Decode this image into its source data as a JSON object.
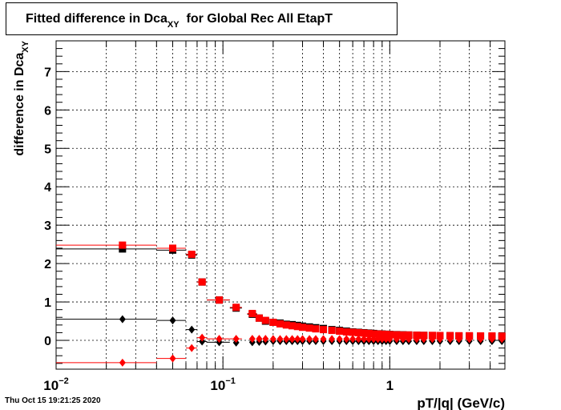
{
  "chart_data": {
    "type": "scatter",
    "title_main": "Fitted difference in Dca",
    "title_sub": "XY",
    "title_rest": "  for Global Rec All EtapT",
    "xlabel": "pT/|q| (GeV/c)",
    "ylabel_main": "difference in Dca",
    "ylabel_sub": "XY",
    "xscale": "log",
    "xlim": [
      0.01,
      4.9
    ],
    "ylim": [
      -0.75,
      7.8
    ],
    "grid": true,
    "x_ticks": [
      {
        "value": 0.01,
        "base": "10",
        "exp": "−2"
      },
      {
        "value": 0.1,
        "base": "10",
        "exp": "−1"
      },
      {
        "value": 1,
        "base": "1",
        "exp": ""
      }
    ],
    "y_ticks": [
      "0",
      "1",
      "2",
      "3",
      "4",
      "5",
      "6",
      "7"
    ],
    "series": [
      {
        "color": "#000000",
        "marker": "square",
        "points": [
          {
            "x": 0.025,
            "y": 2.38,
            "xlo": 0.01,
            "xhi": 0.04
          },
          {
            "x": 0.05,
            "y": 2.35,
            "xlo": 0.04,
            "xhi": 0.06
          },
          {
            "x": 0.065,
            "y": 2.22,
            "xlo": 0.06,
            "xhi": 0.07
          },
          {
            "x": 0.075,
            "y": 1.52,
            "xlo": 0.07,
            "xhi": 0.08
          },
          {
            "x": 0.095,
            "y": 1.05,
            "xlo": 0.08,
            "xhi": 0.11
          },
          {
            "x": 0.12,
            "y": 0.84,
            "xlo": 0.11,
            "xhi": 0.13
          },
          {
            "x": 0.15,
            "y": 0.68,
            "xlo": 0.14,
            "xhi": 0.16
          },
          {
            "x": 0.165,
            "y": 0.58
          },
          {
            "x": 0.18,
            "y": 0.5
          },
          {
            "x": 0.2,
            "y": 0.47
          },
          {
            "x": 0.22,
            "y": 0.45
          },
          {
            "x": 0.24,
            "y": 0.42
          },
          {
            "x": 0.26,
            "y": 0.41
          },
          {
            "x": 0.28,
            "y": 0.39
          },
          {
            "x": 0.3,
            "y": 0.37
          },
          {
            "x": 0.33,
            "y": 0.35
          },
          {
            "x": 0.36,
            "y": 0.33
          },
          {
            "x": 0.4,
            "y": 0.31
          },
          {
            "x": 0.45,
            "y": 0.28
          },
          {
            "x": 0.5,
            "y": 0.26
          },
          {
            "x": 0.55,
            "y": 0.24
          },
          {
            "x": 0.6,
            "y": 0.22
          },
          {
            "x": 0.65,
            "y": 0.21
          },
          {
            "x": 0.7,
            "y": 0.2
          },
          {
            "x": 0.75,
            "y": 0.19
          },
          {
            "x": 0.8,
            "y": 0.18
          },
          {
            "x": 0.85,
            "y": 0.17
          },
          {
            "x": 0.9,
            "y": 0.165
          },
          {
            "x": 0.95,
            "y": 0.16
          },
          {
            "x": 1.0,
            "y": 0.155
          },
          {
            "x": 1.1,
            "y": 0.15
          },
          {
            "x": 1.2,
            "y": 0.145
          },
          {
            "x": 1.3,
            "y": 0.14
          },
          {
            "x": 1.45,
            "y": 0.135
          },
          {
            "x": 1.6,
            "y": 0.13
          },
          {
            "x": 1.8,
            "y": 0.125
          },
          {
            "x": 2.0,
            "y": 0.12
          },
          {
            "x": 2.3,
            "y": 0.12
          },
          {
            "x": 2.6,
            "y": 0.115
          },
          {
            "x": 3.0,
            "y": 0.11
          },
          {
            "x": 3.5,
            "y": 0.11
          },
          {
            "x": 4.1,
            "y": 0.1
          },
          {
            "x": 4.7,
            "y": 0.1
          }
        ]
      },
      {
        "color": "#ff0000",
        "marker": "square",
        "points": [
          {
            "x": 0.025,
            "y": 2.48,
            "xlo": 0.01,
            "xhi": 0.04
          },
          {
            "x": 0.05,
            "y": 2.4,
            "xlo": 0.04,
            "xhi": 0.06
          },
          {
            "x": 0.065,
            "y": 2.24,
            "xlo": 0.06,
            "xhi": 0.07
          },
          {
            "x": 0.075,
            "y": 1.52,
            "xlo": 0.07,
            "xhi": 0.08
          },
          {
            "x": 0.095,
            "y": 1.05,
            "xlo": 0.08,
            "xhi": 0.11
          },
          {
            "x": 0.12,
            "y": 0.86,
            "xlo": 0.11,
            "xhi": 0.13
          },
          {
            "x": 0.15,
            "y": 0.7,
            "xlo": 0.14,
            "xhi": 0.16
          },
          {
            "x": 0.165,
            "y": 0.58
          },
          {
            "x": 0.18,
            "y": 0.52
          },
          {
            "x": 0.2,
            "y": 0.47
          },
          {
            "x": 0.22,
            "y": 0.43
          },
          {
            "x": 0.24,
            "y": 0.4
          },
          {
            "x": 0.26,
            "y": 0.38
          },
          {
            "x": 0.28,
            "y": 0.36
          },
          {
            "x": 0.3,
            "y": 0.34
          },
          {
            "x": 0.33,
            "y": 0.32
          },
          {
            "x": 0.36,
            "y": 0.3
          },
          {
            "x": 0.4,
            "y": 0.28
          },
          {
            "x": 0.45,
            "y": 0.26
          },
          {
            "x": 0.5,
            "y": 0.24
          },
          {
            "x": 0.55,
            "y": 0.22
          },
          {
            "x": 0.6,
            "y": 0.21
          },
          {
            "x": 0.65,
            "y": 0.2
          },
          {
            "x": 0.7,
            "y": 0.19
          },
          {
            "x": 0.75,
            "y": 0.18
          },
          {
            "x": 0.8,
            "y": 0.17
          },
          {
            "x": 0.85,
            "y": 0.165
          },
          {
            "x": 0.9,
            "y": 0.16
          },
          {
            "x": 0.95,
            "y": 0.155
          },
          {
            "x": 1.0,
            "y": 0.15
          },
          {
            "x": 1.1,
            "y": 0.145
          },
          {
            "x": 1.2,
            "y": 0.14
          },
          {
            "x": 1.3,
            "y": 0.14
          },
          {
            "x": 1.45,
            "y": 0.135
          },
          {
            "x": 1.6,
            "y": 0.13
          },
          {
            "x": 1.8,
            "y": 0.13
          },
          {
            "x": 2.0,
            "y": 0.125
          },
          {
            "x": 2.3,
            "y": 0.125
          },
          {
            "x": 2.6,
            "y": 0.12
          },
          {
            "x": 3.0,
            "y": 0.12
          },
          {
            "x": 3.5,
            "y": 0.115
          },
          {
            "x": 4.1,
            "y": 0.115
          },
          {
            "x": 4.7,
            "y": 0.11
          }
        ]
      },
      {
        "color": "#000000",
        "marker": "diamond",
        "points": [
          {
            "x": 0.025,
            "y": 0.55,
            "xlo": 0.01,
            "xhi": 0.04
          },
          {
            "x": 0.05,
            "y": 0.52,
            "xlo": 0.04,
            "xhi": 0.06
          },
          {
            "x": 0.065,
            "y": 0.28,
            "xlo": 0.06,
            "xhi": 0.07
          },
          {
            "x": 0.075,
            "y": -0.03,
            "xlo": 0.07,
            "xhi": 0.08
          },
          {
            "x": 0.095,
            "y": -0.05,
            "xlo": 0.08,
            "xhi": 0.11
          },
          {
            "x": 0.12,
            "y": -0.06
          },
          {
            "x": 0.15,
            "y": -0.05
          },
          {
            "x": 0.165,
            "y": -0.04
          },
          {
            "x": 0.18,
            "y": -0.03
          },
          {
            "x": 0.2,
            "y": -0.02
          },
          {
            "x": 0.22,
            "y": -0.02
          },
          {
            "x": 0.24,
            "y": -0.02
          },
          {
            "x": 0.26,
            "y": -0.02
          },
          {
            "x": 0.28,
            "y": -0.02
          },
          {
            "x": 0.3,
            "y": -0.02
          },
          {
            "x": 0.33,
            "y": -0.02
          },
          {
            "x": 0.36,
            "y": -0.02
          },
          {
            "x": 0.4,
            "y": -0.02
          },
          {
            "x": 0.45,
            "y": -0.02
          },
          {
            "x": 0.5,
            "y": -0.02
          },
          {
            "x": 0.55,
            "y": -0.02
          },
          {
            "x": 0.6,
            "y": -0.02
          },
          {
            "x": 0.65,
            "y": -0.02
          },
          {
            "x": 0.7,
            "y": -0.02
          },
          {
            "x": 0.75,
            "y": -0.02
          },
          {
            "x": 0.8,
            "y": -0.02
          },
          {
            "x": 0.85,
            "y": -0.02
          },
          {
            "x": 0.9,
            "y": -0.02
          },
          {
            "x": 0.95,
            "y": -0.02
          },
          {
            "x": 1.0,
            "y": -0.02
          },
          {
            "x": 1.1,
            "y": -0.02
          },
          {
            "x": 1.2,
            "y": -0.02
          },
          {
            "x": 1.3,
            "y": -0.02
          },
          {
            "x": 1.45,
            "y": -0.02
          },
          {
            "x": 1.6,
            "y": -0.02
          },
          {
            "x": 1.8,
            "y": -0.02
          },
          {
            "x": 2.0,
            "y": -0.02
          },
          {
            "x": 2.3,
            "y": -0.02
          },
          {
            "x": 2.6,
            "y": -0.02
          },
          {
            "x": 3.0,
            "y": -0.02
          },
          {
            "x": 3.5,
            "y": -0.02
          },
          {
            "x": 4.1,
            "y": -0.02
          },
          {
            "x": 4.7,
            "y": -0.02
          }
        ]
      },
      {
        "color": "#ff0000",
        "marker": "diamond",
        "points": [
          {
            "x": 0.025,
            "y": -0.58,
            "xlo": 0.01,
            "xhi": 0.04
          },
          {
            "x": 0.05,
            "y": -0.47,
            "xlo": 0.04,
            "xhi": 0.06
          },
          {
            "x": 0.065,
            "y": -0.2,
            "xlo": 0.06,
            "xhi": 0.07
          },
          {
            "x": 0.075,
            "y": 0.07,
            "xlo": 0.07,
            "xhi": 0.08
          },
          {
            "x": 0.095,
            "y": 0.04,
            "xlo": 0.08,
            "xhi": 0.11
          },
          {
            "x": 0.12,
            "y": 0.04,
            "xlo": 0.11,
            "xhi": 0.13
          },
          {
            "x": 0.15,
            "y": 0.04
          },
          {
            "x": 0.165,
            "y": 0.04
          },
          {
            "x": 0.18,
            "y": 0.04
          },
          {
            "x": 0.2,
            "y": 0.035
          },
          {
            "x": 0.22,
            "y": 0.035
          },
          {
            "x": 0.24,
            "y": 0.035
          },
          {
            "x": 0.26,
            "y": 0.035
          },
          {
            "x": 0.28,
            "y": 0.035
          },
          {
            "x": 0.3,
            "y": 0.035
          },
          {
            "x": 0.33,
            "y": 0.035
          },
          {
            "x": 0.36,
            "y": 0.035
          },
          {
            "x": 0.4,
            "y": 0.035
          },
          {
            "x": 0.45,
            "y": 0.035
          },
          {
            "x": 0.5,
            "y": 0.035
          },
          {
            "x": 0.55,
            "y": 0.035
          },
          {
            "x": 0.6,
            "y": 0.035
          },
          {
            "x": 0.65,
            "y": 0.035
          },
          {
            "x": 0.7,
            "y": 0.035
          },
          {
            "x": 0.75,
            "y": 0.035
          },
          {
            "x": 0.8,
            "y": 0.035
          },
          {
            "x": 0.85,
            "y": 0.035
          },
          {
            "x": 0.9,
            "y": 0.035
          },
          {
            "x": 0.95,
            "y": 0.035
          },
          {
            "x": 1.0,
            "y": 0.035
          },
          {
            "x": 1.1,
            "y": 0.035
          },
          {
            "x": 1.2,
            "y": 0.035
          },
          {
            "x": 1.3,
            "y": 0.035
          },
          {
            "x": 1.45,
            "y": 0.035
          },
          {
            "x": 1.6,
            "y": 0.035
          },
          {
            "x": 1.8,
            "y": 0.035
          },
          {
            "x": 2.0,
            "y": 0.035
          },
          {
            "x": 2.3,
            "y": 0.035
          },
          {
            "x": 2.6,
            "y": 0.035
          },
          {
            "x": 3.0,
            "y": 0.035
          },
          {
            "x": 3.5,
            "y": 0.035
          },
          {
            "x": 4.1,
            "y": 0.035
          },
          {
            "x": 4.7,
            "y": 0.035
          }
        ]
      }
    ]
  },
  "footer": {
    "timestamp": "Thu Oct 15 19:21:25 2020"
  }
}
